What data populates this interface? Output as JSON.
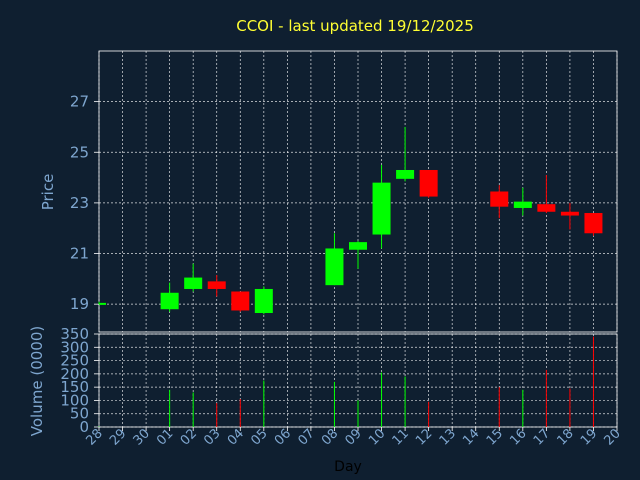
{
  "chart_data": [
    {
      "type": "candlestick",
      "title": "CCOI - last updated 19/12/2025",
      "ylabel": "Price",
      "ylim": [
        17.9,
        29.0
      ],
      "yticks": [
        "19",
        "21",
        "23",
        "25",
        "27"
      ],
      "colors": {
        "up": "#00ff00",
        "down": "#ff0000"
      },
      "candles": [
        {
          "day": "28",
          "open": 19.05,
          "high": 19.1,
          "low": 19.0,
          "close": 19.05
        },
        {
          "day": "01",
          "open": 18.8,
          "high": 19.85,
          "low": 18.7,
          "close": 19.45
        },
        {
          "day": "02",
          "open": 19.6,
          "high": 20.6,
          "low": 19.5,
          "close": 20.05
        },
        {
          "day": "03",
          "open": 19.9,
          "high": 20.15,
          "low": 19.3,
          "close": 19.6
        },
        {
          "day": "04",
          "open": 19.5,
          "high": 19.5,
          "low": 18.7,
          "close": 18.75
        },
        {
          "day": "05",
          "open": 18.65,
          "high": 19.7,
          "low": 18.6,
          "close": 19.6
        },
        {
          "day": "08",
          "open": 19.75,
          "high": 21.8,
          "low": 19.75,
          "close": 21.2
        },
        {
          "day": "09",
          "open": 21.15,
          "high": 21.5,
          "low": 20.4,
          "close": 21.45
        },
        {
          "day": "10",
          "open": 21.75,
          "high": 24.5,
          "low": 21.2,
          "close": 23.8
        },
        {
          "day": "11",
          "open": 23.95,
          "high": 26.0,
          "low": 23.85,
          "close": 24.3
        },
        {
          "day": "12",
          "open": 24.3,
          "high": 24.3,
          "low": 23.2,
          "close": 23.25
        },
        {
          "day": "15",
          "open": 23.45,
          "high": 23.7,
          "low": 22.4,
          "close": 22.85
        },
        {
          "day": "16",
          "open": 22.8,
          "high": 23.6,
          "low": 22.5,
          "close": 23.05
        },
        {
          "day": "17",
          "open": 22.95,
          "high": 24.1,
          "low": 22.6,
          "close": 22.65
        },
        {
          "day": "18",
          "open": 22.65,
          "high": 23.0,
          "low": 21.95,
          "close": 22.5
        },
        {
          "day": "19",
          "open": 22.6,
          "high": 22.6,
          "low": 21.7,
          "close": 21.8
        }
      ]
    },
    {
      "type": "bar",
      "ylabel": "Volume (0000)",
      "xlabel": "Day",
      "ylim": [
        0,
        350
      ],
      "yticks": [
        "0",
        "50",
        "100",
        "150",
        "200",
        "250",
        "300",
        "350"
      ],
      "categories": [
        "28",
        "29",
        "30",
        "01",
        "02",
        "03",
        "04",
        "05",
        "06",
        "07",
        "08",
        "09",
        "10",
        "11",
        "12",
        "13",
        "14",
        "15",
        "16",
        "17",
        "18",
        "19",
        "20"
      ],
      "volumes": [
        {
          "day": "28",
          "value": 2,
          "dir": "up"
        },
        {
          "day": "01",
          "value": 140,
          "dir": "up"
        },
        {
          "day": "02",
          "value": 130,
          "dir": "up"
        },
        {
          "day": "03",
          "value": 90,
          "dir": "down"
        },
        {
          "day": "04",
          "value": 105,
          "dir": "down"
        },
        {
          "day": "05",
          "value": 175,
          "dir": "up"
        },
        {
          "day": "08",
          "value": 170,
          "dir": "up"
        },
        {
          "day": "09",
          "value": 100,
          "dir": "up"
        },
        {
          "day": "10",
          "value": 205,
          "dir": "up"
        },
        {
          "day": "11",
          "value": 190,
          "dir": "up"
        },
        {
          "day": "12",
          "value": 95,
          "dir": "down"
        },
        {
          "day": "15",
          "value": 150,
          "dir": "down"
        },
        {
          "day": "16",
          "value": 140,
          "dir": "up"
        },
        {
          "day": "17",
          "value": 215,
          "dir": "down"
        },
        {
          "day": "18",
          "value": 145,
          "dir": "down"
        },
        {
          "day": "19",
          "value": 340,
          "dir": "down"
        }
      ]
    }
  ]
}
